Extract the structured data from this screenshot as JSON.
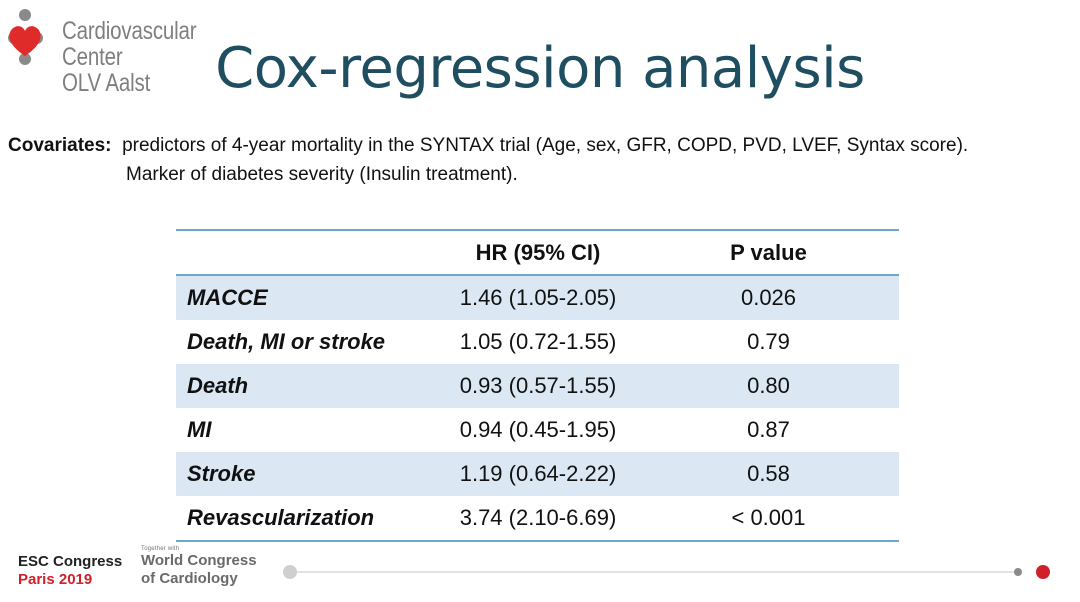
{
  "logo": {
    "line1": "Cardiovascular Center",
    "line2": "OLV Aalst",
    "text_color": "#7f7f7f",
    "heart_color": "#e02b2b",
    "dots_color": "#8a8a8a"
  },
  "title": "Cox-regression analysis",
  "covariates": {
    "label": "Covariates",
    "line1": "predictors of 4-year mortality in the SYNTAX trial (Age, sex, GFR, COPD, PVD, LVEF, Syntax score).",
    "line2": "Marker of diabetes severity (Insulin treatment)."
  },
  "table": {
    "headers": [
      "",
      "HR (95% CI)",
      "P value"
    ],
    "rows": [
      {
        "outcome": "MACCE",
        "hr": "1.46 (1.05-2.05)",
        "p": "0.026"
      },
      {
        "outcome": "Death, MI or stroke",
        "hr": "1.05 (0.72-1.55)",
        "p": "0.79"
      },
      {
        "outcome": "Death",
        "hr": "0.93 (0.57-1.55)",
        "p": "0.80"
      },
      {
        "outcome": "MI",
        "hr": "0.94 (0.45-1.95)",
        "p": "0.87"
      },
      {
        "outcome": "Stroke",
        "hr": "1.19 (0.64-2.22)",
        "p": "0.58"
      },
      {
        "outcome": "Revascularization",
        "hr": "3.74 (2.10-6.69)",
        "p": "< 0.001"
      }
    ],
    "line_color": "#6fa8c6",
    "shade_color": "#dbe8f4"
  },
  "footer": {
    "esc_line1": "ESC Congress",
    "esc_line2": "Paris 2019",
    "wc_small": "Together with",
    "wc_line1": "World Congress",
    "wc_line2": "of Cardiology",
    "progress": 1.0,
    "accent_color": "#d0202a"
  }
}
